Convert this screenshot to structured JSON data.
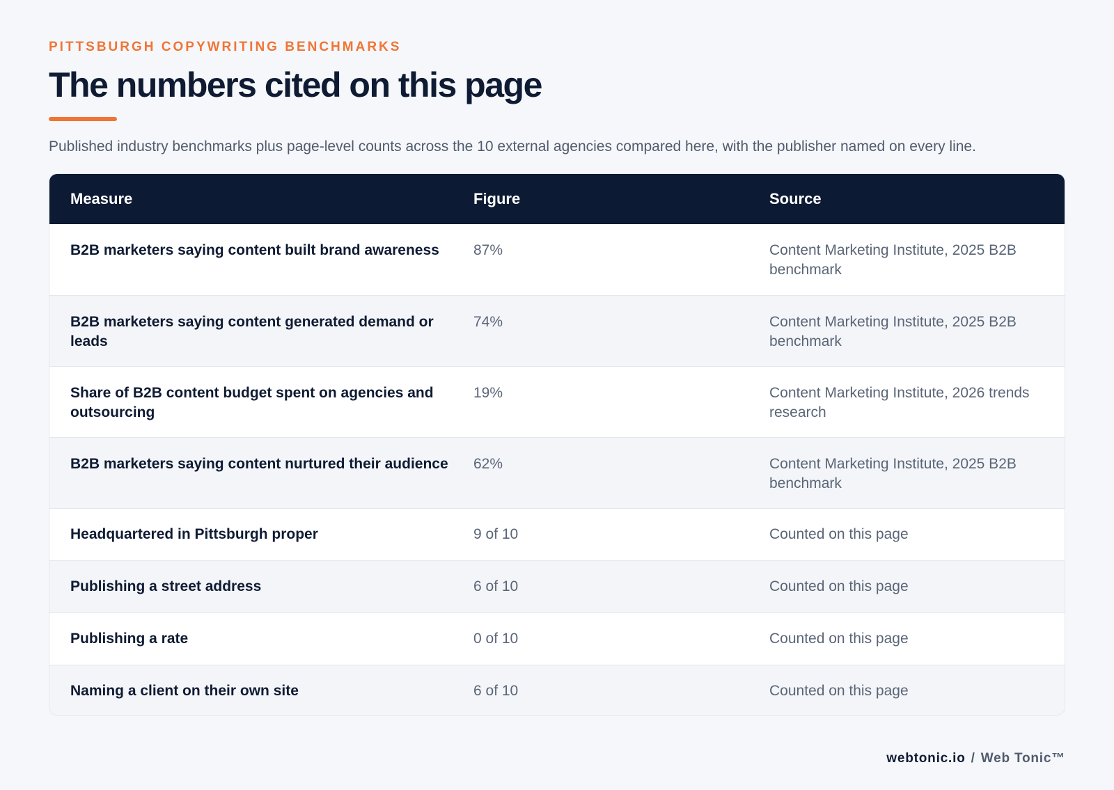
{
  "header": {
    "eyebrow": "PITTSBURGH COPYWRITING BENCHMARKS",
    "title": "The numbers cited on this page",
    "subtitle": "Published industry benchmarks plus page-level counts across the 10 external agencies compared here, with the publisher named on every line."
  },
  "table": {
    "columns": [
      "Measure",
      "Figure",
      "Source"
    ],
    "rows": [
      {
        "measure": "B2B marketers saying content built brand awareness",
        "figure": "87%",
        "source": "Content Marketing Institute, 2025 B2B benchmark"
      },
      {
        "measure": "B2B marketers saying content generated demand or leads",
        "figure": "74%",
        "source": "Content Marketing Institute, 2025 B2B benchmark"
      },
      {
        "measure": "Share of B2B content budget spent on agencies and outsourcing",
        "figure": "19%",
        "source": "Content Marketing Institute, 2026 trends research"
      },
      {
        "measure": "B2B marketers saying content nurtured their audience",
        "figure": "62%",
        "source": "Content Marketing Institute, 2025 B2B benchmark"
      },
      {
        "measure": "Headquartered in Pittsburgh proper",
        "figure": "9 of 10",
        "source": "Counted on this page"
      },
      {
        "measure": "Publishing a street address",
        "figure": "6 of 10",
        "source": "Counted on this page"
      },
      {
        "measure": "Publishing a rate",
        "figure": "0 of 10",
        "source": "Counted on this page"
      },
      {
        "measure": "Naming a client on their own site",
        "figure": "6 of 10",
        "source": "Counted on this page"
      }
    ]
  },
  "footer": {
    "domain": "webtonic.io",
    "separator": "/",
    "brand": "Web Tonic™"
  },
  "colors": {
    "accent": "#f07535",
    "header_bg": "#0c1a33",
    "page_bg": "#f5f7fa"
  }
}
